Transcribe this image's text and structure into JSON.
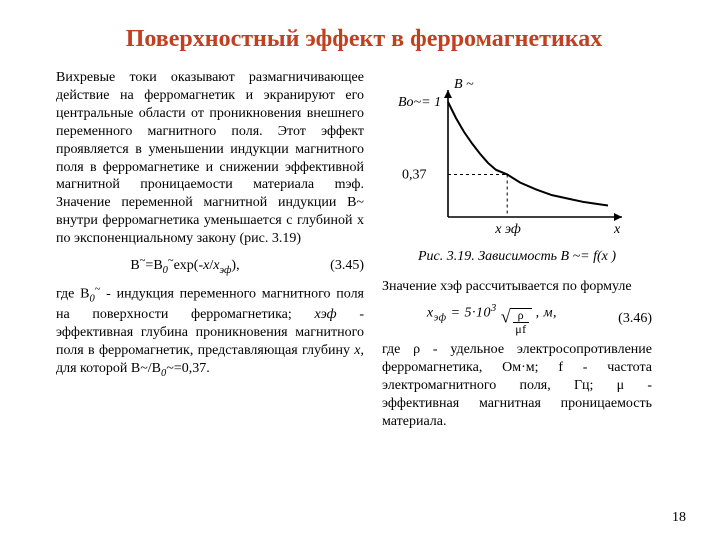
{
  "title": "Поверхностный эффект в ферромагнетиках",
  "left": {
    "p1": "Вихревые токи оказывают размагничива­ющее действие на ферромагнетик и экранируют его центральные области от проникновения внешнего переменного магнитного поля. Этот эффект проявляется в уменьшении индукции магнитного поля в ферромагнетике и снижении эффективной магнитной проницаемости материала mэф. Значение переменной магнитной индукции B~ внутри ферромагнетика уменьшается с глубиной x по экспоненциальному закону (рис. 3.19)",
    "eq1_text": "B~=B0~exp(-x/xэф),",
    "eq1_num": "(3.45)",
    "p2_a": "где B",
    "p2_b": " - индукция переменного магнитного поля на поверхности ферромагнетика; ",
    "p2_c": " - эффективная глубина  проникновения маг­нитного поля в ферромагнетик, представ­ляющая глубину ",
    "p2_d": ", для которой B~/B",
    "p2_e": "~=0,37.",
    "xef": "xэф",
    "x": "x",
    "sub0tilde": "0~"
  },
  "right": {
    "caption_a": "Рис. 3.19. ",
    "caption_b": "Зависимость B ~= f(x )",
    "p1": "Значение xэф рассчитывается по фор­муле",
    "eq2_lead": "xэф = 5·10",
    "eq2_exp": "3",
    "eq2_num_frac": "ρ",
    "eq2_den_frac": "μf",
    "eq2_unit": " , м,",
    "eq2_num": "(3.46)",
    "p2": "где ρ - удельное электросопротив­ление ферромагнетика, Ом·м;  f - частота электромагнитного поля, Гц; μ - эффективная магнитная проницаемость материала."
  },
  "chart": {
    "type": "line-decay",
    "xlim": [
      0,
      1
    ],
    "ylim": [
      0,
      1
    ],
    "x_axis_label": "x",
    "x_tick_label": "x эф",
    "y_axis_label": "B ~",
    "y_top_label": "Bo~= 1",
    "y_tick_value_label": "0,37",
    "curve_samples": [
      [
        0.0,
        1.0
      ],
      [
        0.05,
        0.86
      ],
      [
        0.1,
        0.74
      ],
      [
        0.15,
        0.64
      ],
      [
        0.2,
        0.55
      ],
      [
        0.25,
        0.47
      ],
      [
        0.3,
        0.41
      ],
      [
        0.37,
        0.37
      ],
      [
        0.45,
        0.3
      ],
      [
        0.55,
        0.24
      ],
      [
        0.65,
        0.19
      ],
      [
        0.75,
        0.16
      ],
      [
        0.85,
        0.13
      ],
      [
        0.95,
        0.11
      ],
      [
        1.0,
        0.1
      ]
    ],
    "dash_x": 0.37,
    "dash_y": 0.37,
    "axis_color": "#000000",
    "curve_color": "#000000",
    "dash_color": "#000000",
    "background_color": "#ffffff",
    "axis_stroke_width": 1.6,
    "curve_stroke_width": 2,
    "dash_pattern": "3,3",
    "label_fontsize": 14
  },
  "page_number": "18"
}
